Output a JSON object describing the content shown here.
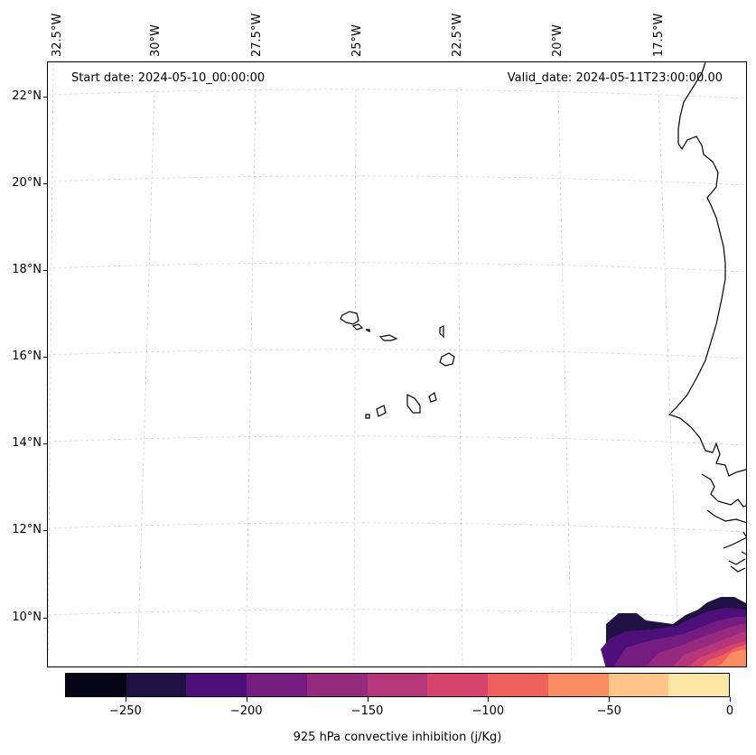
{
  "map": {
    "start_date": "Start date: 2024-05-10_00:00:00",
    "valid_date": "Valid_date: 2024-05-11T23:00:00.00",
    "lon_labels": [
      "32.5°W",
      "30°W",
      "27.5°W",
      "25°W",
      "22.5°W",
      "20°W",
      "17.5°W"
    ],
    "lat_labels": [
      "22°N",
      "20°N",
      "18°N",
      "16°N",
      "14°N",
      "12°N",
      "10°N"
    ]
  },
  "colorbar": {
    "title": "925 hPa convective inhibition (j/Kg)",
    "tick_labels": [
      "−250",
      "−200",
      "−150",
      "−100",
      "−50",
      "0"
    ],
    "range": [
      -275,
      0
    ],
    "levels": [
      -275,
      -250,
      -225,
      -200,
      -175,
      -150,
      -125,
      -100,
      -75,
      -50,
      -25,
      0
    ],
    "colors": [
      "#050316",
      "#1f1144",
      "#4e0f7a",
      "#741c80",
      "#962a7f",
      "#b5367a",
      "#d6446d",
      "#f0605d",
      "#fa8c61",
      "#fec488",
      "#fde7a5"
    ]
  }
}
